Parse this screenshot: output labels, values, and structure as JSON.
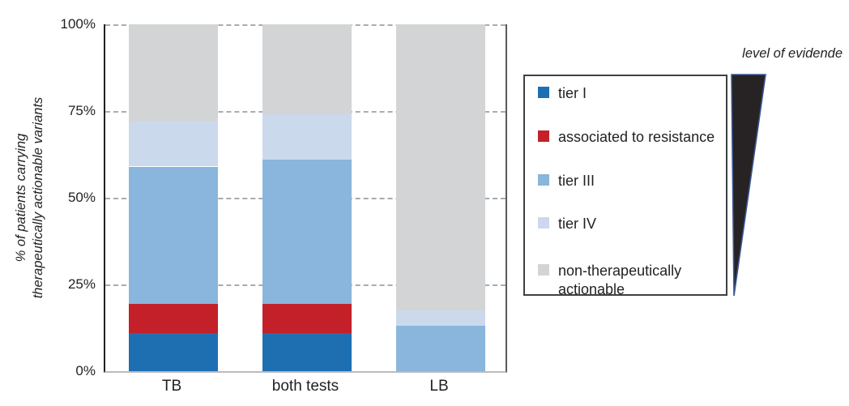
{
  "figure": {
    "y_axis_label_line1": "% of patients carrying",
    "y_axis_label_line2": "therapeutically actionable variants",
    "evidence_label": "level of evidende"
  },
  "chart_data": {
    "type": "bar",
    "stacked": true,
    "categories": [
      "TB",
      "both tests",
      "LB"
    ],
    "series": [
      {
        "name": "tier I",
        "color": "#1e6fb2",
        "values": [
          11,
          11,
          0
        ]
      },
      {
        "name": "associated to resistance",
        "color": "#c32029",
        "values": [
          8.5,
          8.5,
          0
        ]
      },
      {
        "name": "tier III",
        "color": "#8ab5dc",
        "values": [
          39.5,
          41.5,
          13
        ]
      },
      {
        "name": "tier IV",
        "color": "#cbd9ec",
        "values": [
          13,
          13,
          4.5
        ]
      },
      {
        "name": "non-therapeutically actionable",
        "color": "#d3d4d5",
        "values": [
          28,
          26,
          82.5
        ]
      }
    ],
    "title": "",
    "xlabel": "",
    "ylabel": "% of patients carrying therapeutically actionable variants",
    "ylim": [
      0,
      100
    ],
    "yticks": [
      {
        "label": "0%",
        "value": 0
      },
      {
        "label": "25%",
        "value": 25
      },
      {
        "label": "50%",
        "value": 50
      },
      {
        "label": "75%",
        "value": 75
      },
      {
        "label": "100%",
        "value": 100
      }
    ],
    "grid": "dashed-horizontal",
    "legend_position": "right-box",
    "annotation": "level of evidende"
  }
}
